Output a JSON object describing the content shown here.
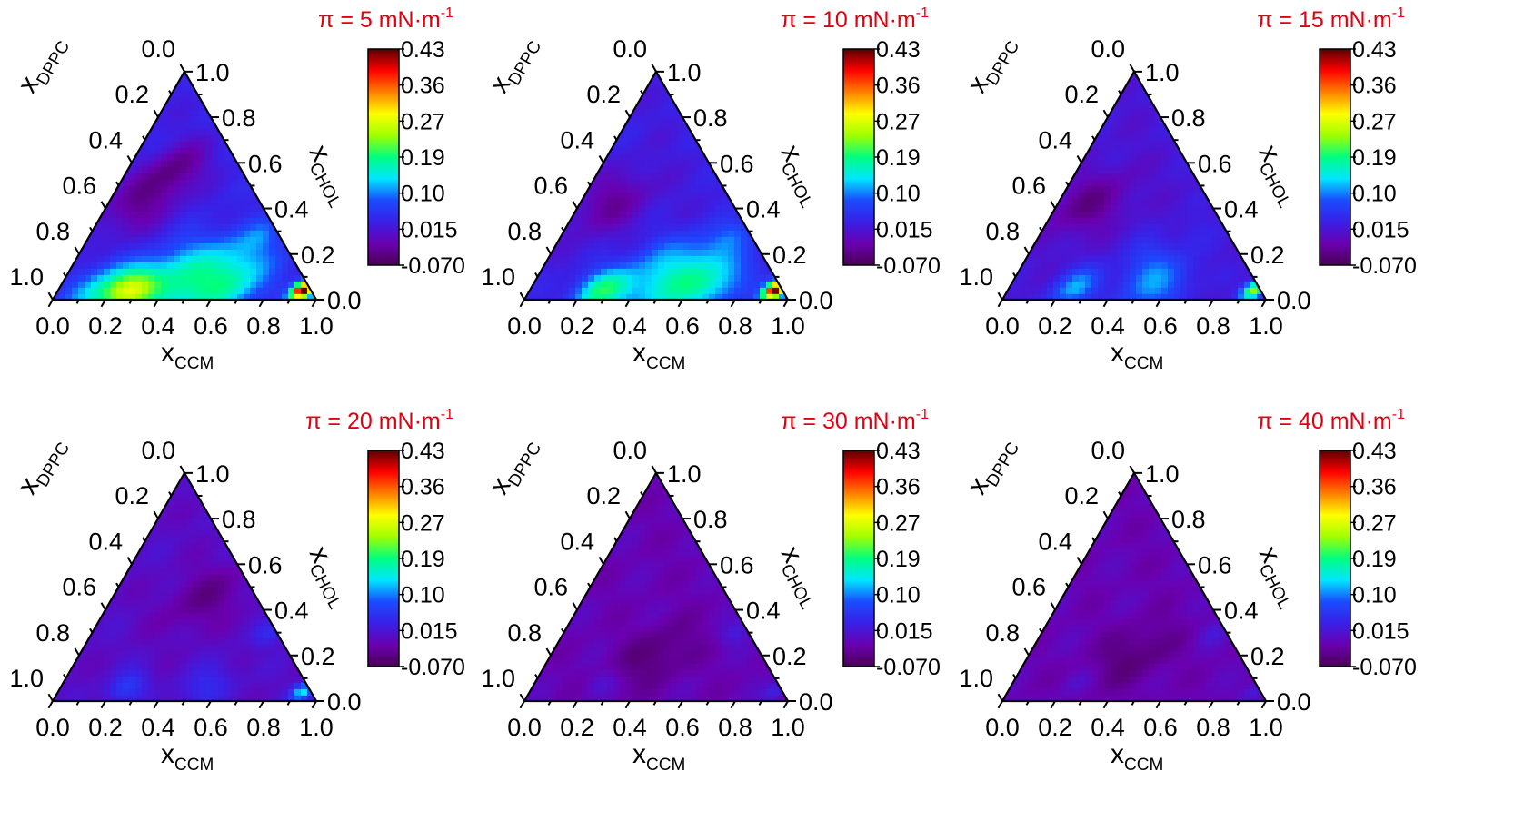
{
  "chart_data": [
    {
      "type": "heatmap",
      "title": "π = 5 mN·m-1",
      "title_parts": {
        "main": "π = 5 mN·m",
        "sup": "-1"
      },
      "title_color": "#e0000f",
      "ternary_axes": {
        "bottom": {
          "label": "x",
          "label_sub": "CCM",
          "ticks": [
            "0.0",
            "0.2",
            "0.4",
            "0.6",
            "0.8",
            "1.0"
          ]
        },
        "left": {
          "label": "x",
          "label_sub": "DPPC",
          "ticks": [
            "0.0",
            "0.2",
            "0.4",
            "0.6",
            "0.8",
            "1.0"
          ]
        },
        "right": {
          "label": "x",
          "label_sub": "CHOL",
          "ticks": [
            "0.0",
            "0.2",
            "0.4",
            "0.6",
            "0.8",
            "1.0"
          ]
        }
      },
      "colorbar": {
        "ticks": [
          "0.43",
          "0.36",
          "0.27",
          "0.19",
          "0.10",
          "0.015",
          "-0.070"
        ],
        "range": [
          -0.07,
          0.43
        ]
      },
      "base_value": 0.03,
      "features": [
        {
          "ccm": 0.27,
          "chol": 0.04,
          "value": 0.2,
          "spread": 0.07
        },
        {
          "ccm": 0.45,
          "chol": 0.06,
          "value": 0.15,
          "spread": 0.12
        },
        {
          "ccm": 0.65,
          "chol": 0.07,
          "value": 0.13,
          "spread": 0.1
        },
        {
          "ccm": 0.15,
          "chol": 0.04,
          "value": 0.12,
          "spread": 0.08
        },
        {
          "ccm": 0.58,
          "chol": 0.22,
          "value": 0.06,
          "spread": 0.08
        },
        {
          "ccm": 0.65,
          "chol": 0.28,
          "value": 0.07,
          "spread": 0.05
        },
        {
          "ccm": 0.4,
          "chol": 0.2,
          "value": 0.05,
          "spread": 0.07
        },
        {
          "ccm": 0.12,
          "chol": 0.42,
          "value": -0.03,
          "spread": 0.1
        },
        {
          "ccm": 0.18,
          "chol": 0.58,
          "value": -0.03,
          "spread": 0.08
        },
        {
          "ccm": 0.93,
          "chol": 0.04,
          "value": 0.43,
          "spread": 0.03
        }
      ]
    },
    {
      "type": "heatmap",
      "title": "π = 10 mN·m-1",
      "title_parts": {
        "main": "π = 10 mN·m",
        "sup": "-1"
      },
      "title_color": "#e0000f",
      "ternary_axes": {
        "bottom": {
          "label": "x",
          "label_sub": "CCM",
          "ticks": [
            "0.0",
            "0.2",
            "0.4",
            "0.6",
            "0.8",
            "1.0"
          ]
        },
        "left": {
          "label": "x",
          "label_sub": "DPPC",
          "ticks": [
            "0.0",
            "0.2",
            "0.4",
            "0.6",
            "0.8",
            "1.0"
          ]
        },
        "right": {
          "label": "x",
          "label_sub": "CHOL",
          "ticks": [
            "0.0",
            "0.2",
            "0.4",
            "0.6",
            "0.8",
            "1.0"
          ]
        }
      },
      "colorbar": {
        "ticks": [
          "0.43",
          "0.36",
          "0.27",
          "0.19",
          "0.10",
          "0.015",
          "-0.070"
        ],
        "range": [
          -0.07,
          0.43
        ]
      },
      "base_value": 0.025,
      "features": [
        {
          "ccm": 0.27,
          "chol": 0.04,
          "value": 0.17,
          "spread": 0.07
        },
        {
          "ccm": 0.5,
          "chol": 0.06,
          "value": 0.14,
          "spread": 0.11
        },
        {
          "ccm": 0.68,
          "chol": 0.07,
          "value": 0.12,
          "spread": 0.09
        },
        {
          "ccm": 0.58,
          "chol": 0.22,
          "value": 0.06,
          "spread": 0.08
        },
        {
          "ccm": 0.65,
          "chol": 0.28,
          "value": 0.06,
          "spread": 0.05
        },
        {
          "ccm": 0.4,
          "chol": 0.2,
          "value": 0.05,
          "spread": 0.07
        },
        {
          "ccm": 0.12,
          "chol": 0.42,
          "value": -0.03,
          "spread": 0.1
        },
        {
          "ccm": 0.93,
          "chol": 0.04,
          "value": 0.43,
          "spread": 0.03
        }
      ]
    },
    {
      "type": "heatmap",
      "title": "π = 15 mN·m-1",
      "title_parts": {
        "main": "π = 15 mN·m",
        "sup": "-1"
      },
      "title_color": "#e0000f",
      "ternary_axes": {
        "bottom": {
          "label": "x",
          "label_sub": "CCM",
          "ticks": [
            "0.0",
            "0.2",
            "0.4",
            "0.6",
            "0.8",
            "1.0"
          ]
        },
        "left": {
          "label": "x",
          "label_sub": "DPPC",
          "ticks": [
            "0.0",
            "0.2",
            "0.4",
            "0.6",
            "0.8",
            "1.0"
          ]
        },
        "right": {
          "label": "x",
          "label_sub": "CHOL",
          "ticks": [
            "0.0",
            "0.2",
            "0.4",
            "0.6",
            "0.8",
            "1.0"
          ]
        }
      },
      "colorbar": {
        "ticks": [
          "0.43",
          "0.36",
          "0.27",
          "0.19",
          "0.10",
          "0.015",
          "-0.070"
        ],
        "range": [
          -0.07,
          0.43
        ]
      },
      "base_value": 0.015,
      "features": [
        {
          "ccm": 0.25,
          "chol": 0.05,
          "value": 0.11,
          "spread": 0.06
        },
        {
          "ccm": 0.55,
          "chol": 0.06,
          "value": 0.1,
          "spread": 0.09
        },
        {
          "ccm": 0.45,
          "chol": 0.18,
          "value": 0.05,
          "spread": 0.07
        },
        {
          "ccm": 0.58,
          "chol": 0.3,
          "value": 0.03,
          "spread": 0.05
        },
        {
          "ccm": 0.12,
          "chol": 0.42,
          "value": -0.04,
          "spread": 0.1
        },
        {
          "ccm": 0.93,
          "chol": 0.04,
          "value": 0.23,
          "spread": 0.03
        }
      ]
    },
    {
      "type": "heatmap",
      "title": "π = 20 mN·m-1",
      "title_parts": {
        "main": "π = 20 mN·m",
        "sup": "-1"
      },
      "title_color": "#e0000f",
      "ternary_axes": {
        "bottom": {
          "label": "x",
          "label_sub": "CCM",
          "ticks": [
            "0.0",
            "0.2",
            "0.4",
            "0.6",
            "0.8",
            "1.0"
          ]
        },
        "left": {
          "label": "x",
          "label_sub": "DPPC",
          "ticks": [
            "0.0",
            "0.2",
            "0.4",
            "0.6",
            "0.8",
            "1.0"
          ]
        },
        "right": {
          "label": "x",
          "label_sub": "CHOL",
          "ticks": [
            "0.0",
            "0.2",
            "0.4",
            "0.6",
            "0.8",
            "1.0"
          ]
        }
      },
      "colorbar": {
        "ticks": [
          "0.43",
          "0.36",
          "0.27",
          "0.19",
          "0.10",
          "0.015",
          "-0.070"
        ],
        "range": [
          -0.07,
          0.43
        ]
      },
      "base_value": 0.0,
      "features": [
        {
          "ccm": 0.25,
          "chol": 0.06,
          "value": 0.06,
          "spread": 0.05
        },
        {
          "ccm": 0.55,
          "chol": 0.06,
          "value": 0.04,
          "spread": 0.07
        },
        {
          "ccm": 0.68,
          "chol": 0.3,
          "value": 0.04,
          "spread": 0.04
        },
        {
          "ccm": 0.93,
          "chol": 0.04,
          "value": 0.13,
          "spread": 0.03
        },
        {
          "ccm": 0.35,
          "chol": 0.45,
          "value": -0.04,
          "spread": 0.1
        }
      ]
    },
    {
      "type": "heatmap",
      "title": "π = 30 mN·m-1",
      "title_parts": {
        "main": "π = 30 mN·m",
        "sup": "-1"
      },
      "title_color": "#e0000f",
      "ternary_axes": {
        "bottom": {
          "label": "x",
          "label_sub": "CCM",
          "ticks": [
            "0.0",
            "0.2",
            "0.4",
            "0.6",
            "0.8",
            "1.0"
          ]
        },
        "left": {
          "label": "x",
          "label_sub": "DPPC",
          "ticks": [
            "0.0",
            "0.2",
            "0.4",
            "0.6",
            "0.8",
            "1.0"
          ]
        },
        "right": {
          "label": "x",
          "label_sub": "CHOL",
          "ticks": [
            "0.0",
            "0.2",
            "0.4",
            "0.6",
            "0.8",
            "1.0"
          ]
        }
      },
      "colorbar": {
        "ticks": [
          "0.43",
          "0.36",
          "0.27",
          "0.19",
          "0.10",
          "0.015",
          "-0.070"
        ],
        "range": [
          -0.07,
          0.43
        ]
      },
      "base_value": -0.015,
      "features": [
        {
          "ccm": 0.4,
          "chol": 0.2,
          "value": -0.05,
          "spread": 0.1
        },
        {
          "ccm": 0.65,
          "chol": 0.3,
          "value": 0.02,
          "spread": 0.04
        },
        {
          "ccm": 0.25,
          "chol": 0.08,
          "value": 0.01,
          "spread": 0.04
        },
        {
          "ccm": 0.93,
          "chol": 0.04,
          "value": 0.03,
          "spread": 0.03
        }
      ]
    },
    {
      "type": "heatmap",
      "title": "π = 40 mN·m-1",
      "title_parts": {
        "main": "π = 40 mN·m",
        "sup": "-1"
      },
      "title_color": "#e0000f",
      "ternary_axes": {
        "bottom": {
          "label": "x",
          "label_sub": "CCM",
          "ticks": [
            "0.0",
            "0.2",
            "0.4",
            "0.6",
            "0.8",
            "1.0"
          ]
        },
        "left": {
          "label": "x",
          "label_sub": "DPPC",
          "ticks": [
            "0.0",
            "0.2",
            "0.4",
            "0.6",
            "0.8",
            "1.0"
          ]
        },
        "right": {
          "label": "x",
          "label_sub": "CHOL",
          "ticks": [
            "0.0",
            "0.2",
            "0.4",
            "0.6",
            "0.8",
            "1.0"
          ]
        }
      },
      "colorbar": {
        "ticks": [
          "0.43",
          "0.36",
          "0.27",
          "0.19",
          "0.10",
          "0.015",
          "-0.070"
        ],
        "range": [
          -0.07,
          0.43
        ]
      },
      "base_value": -0.015,
      "features": [
        {
          "ccm": 0.4,
          "chol": 0.2,
          "value": -0.05,
          "spread": 0.1
        },
        {
          "ccm": 0.65,
          "chol": 0.3,
          "value": 0.01,
          "spread": 0.04
        },
        {
          "ccm": 0.25,
          "chol": 0.08,
          "value": 0.0,
          "spread": 0.04
        },
        {
          "ccm": 0.93,
          "chol": 0.04,
          "value": 0.02,
          "spread": 0.03
        }
      ]
    }
  ],
  "colormap": [
    "#4b0055",
    "#6a00b0",
    "#3a20e6",
    "#1a4cff",
    "#00e6ff",
    "#00ff80",
    "#a0ff00",
    "#ffff00",
    "#ff8000",
    "#ff0000",
    "#5a0000"
  ]
}
